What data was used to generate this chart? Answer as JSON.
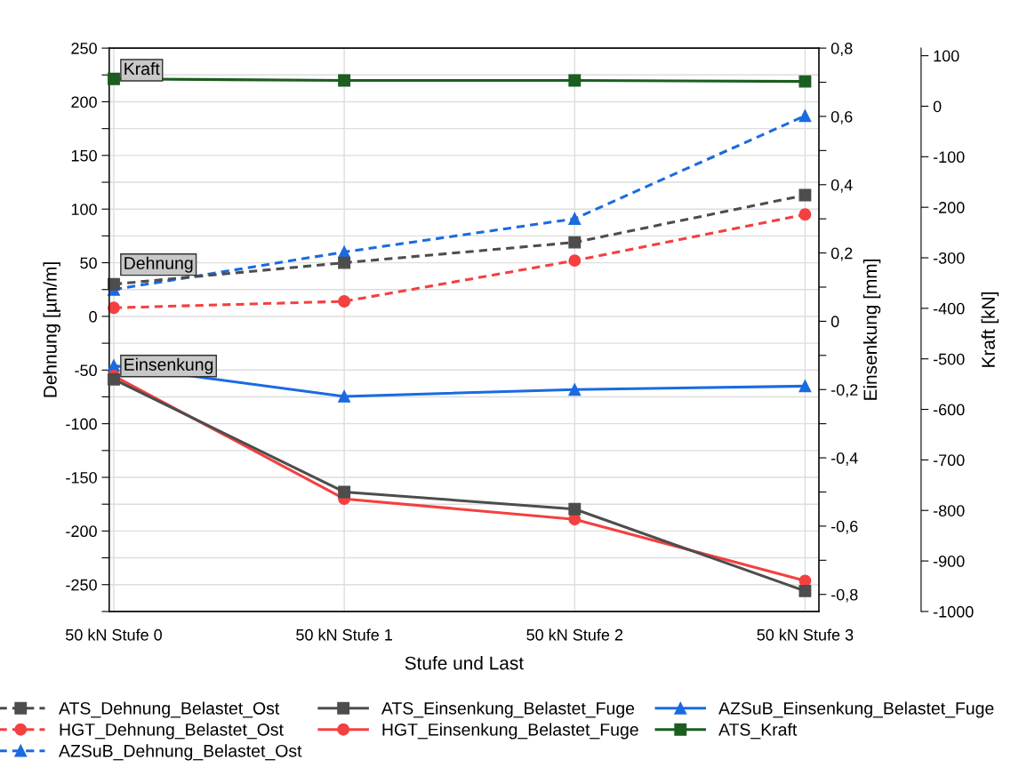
{
  "chart_data": {
    "type": "line",
    "categories": [
      "50 kN Stufe 0",
      "50 kN Stufe 1",
      "50 kN Stufe 2",
      "50 kN Stufe 3"
    ],
    "xlabel": "Stufe und Last",
    "ylabel": "Dehnung [µm/m]",
    "y2label": "Einsenkung [mm]",
    "y3label": "Kraft [kN]",
    "ylim": [
      -275,
      250
    ],
    "yticks": [
      {
        "value": -275,
        "label": null
      },
      -250,
      {
        "value": -225,
        "label": null
      },
      -200,
      {
        "value": -175,
        "label": null
      },
      -150,
      {
        "value": -125,
        "label": null
      },
      -100,
      {
        "value": -75,
        "label": null
      },
      -50,
      {
        "value": -25,
        "label": null
      },
      0,
      {
        "value": 25,
        "label": null
      },
      50,
      {
        "value": 75,
        "label": null
      },
      100,
      {
        "value": 125,
        "label": null
      },
      150,
      {
        "value": 175,
        "label": null
      },
      200,
      {
        "value": 225,
        "label": null
      },
      250
    ],
    "y2lim": [
      -0.85,
      0.8
    ],
    "y2ticks": [
      {
        "value": -0.8,
        "label": "-0,8"
      },
      {
        "value": -0.7,
        "label": null
      },
      {
        "value": -0.6,
        "label": "-0,6"
      },
      {
        "value": -0.5,
        "label": null
      },
      {
        "value": -0.4,
        "label": "-0,4"
      },
      {
        "value": -0.3,
        "label": null
      },
      {
        "value": -0.2,
        "label": "-0,2"
      },
      {
        "value": -0.1,
        "label": null
      },
      0,
      {
        "value": 0.1,
        "label": null
      },
      {
        "value": 0.2,
        "label": "0,2"
      },
      {
        "value": 0.3,
        "label": null
      },
      {
        "value": 0.4,
        "label": "0,4"
      },
      {
        "value": 0.5,
        "label": null
      },
      {
        "value": 0.6,
        "label": "0,6"
      },
      {
        "value": 0.7,
        "label": null
      },
      {
        "value": 0.8,
        "label": "0,8"
      }
    ],
    "y3lim": [
      -1000,
      115
    ],
    "y3ticks": [
      -1000,
      -900,
      -800,
      -700,
      -600,
      -500,
      -400,
      -300,
      -200,
      -100,
      0,
      100
    ],
    "grid": true,
    "legend": "bottom",
    "annotations": [
      "Kraft",
      "Dehnung",
      "Einsenkung"
    ],
    "series": [
      {
        "name": "ATS_Dehnung_Belastet_Ost",
        "color": "#4d4d4d",
        "marker": "square",
        "line_style": "dashed",
        "values": [
          30,
          50,
          69,
          113
        ]
      },
      {
        "name": "HGT_Dehnung_Belastet_Ost",
        "color": "#f44040",
        "marker": "circle",
        "line_style": "dashed",
        "values": [
          8,
          14,
          52,
          95
        ]
      },
      {
        "name": "AZSuB_Dehnung_Belastet_Ost",
        "color": "#1a6be0",
        "marker": "triangle",
        "line_style": "dashed",
        "values": [
          25,
          60,
          91,
          187
        ]
      },
      {
        "name": "ATS_Einsenkung_Belastet_Fuge",
        "color": "#4d4d4d",
        "marker": "square",
        "line_style": "solid",
        "axis": "y2",
        "values": [
          -0.17,
          -0.5,
          -0.55,
          -0.79
        ]
      },
      {
        "name": "HGT_Einsenkung_Belastet_Fuge",
        "color": "#f44040",
        "marker": "circle",
        "line_style": "solid",
        "axis": "y2",
        "values": [
          -0.16,
          -0.52,
          -0.58,
          -0.76
        ]
      },
      {
        "name": "AZSuB_Einsenkung_Belastet_Fuge",
        "color": "#1a6be0",
        "marker": "triangle",
        "line_style": "solid",
        "axis": "y2",
        "values": [
          -0.13,
          -0.22,
          -0.2,
          -0.19
        ]
      },
      {
        "name": "ATS_Kraft",
        "color": "#1b5e20",
        "marker": "square",
        "line_style": "solid",
        "axis": "y3",
        "values": [
          54,
          51,
          51,
          49
        ]
      }
    ]
  }
}
